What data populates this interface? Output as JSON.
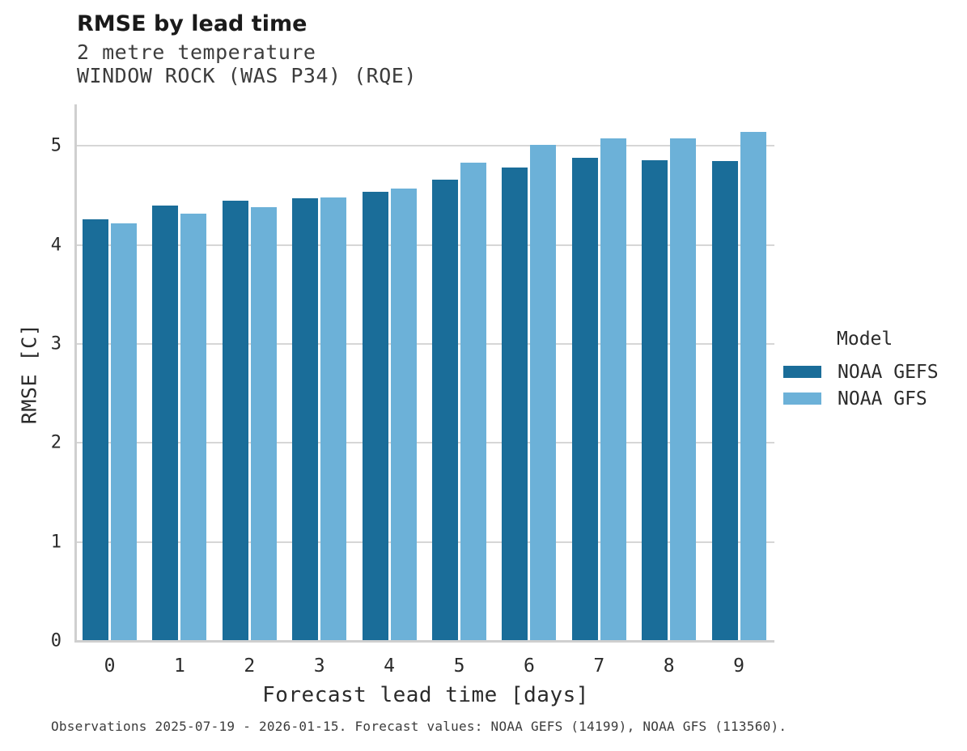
{
  "header": {
    "title": "RMSE by lead time",
    "subtitle": "2 metre temperature",
    "station": "WINDOW ROCK (WAS P34) (RQE)"
  },
  "chart_data": {
    "type": "bar",
    "title": "RMSE by lead time",
    "subtitle": "2 metre temperature",
    "station": "WINDOW ROCK (WAS P34) (RQE)",
    "xlabel": "Forecast lead time [days]",
    "ylabel": "RMSE [C]",
    "categories": [
      "0",
      "1",
      "2",
      "3",
      "4",
      "5",
      "6",
      "7",
      "8",
      "9"
    ],
    "series": [
      {
        "name": "NOAA GEFS",
        "color": "#1a6d99",
        "values": [
          4.26,
          4.4,
          4.45,
          4.47,
          4.54,
          4.66,
          4.78,
          4.88,
          4.86,
          4.85
        ]
      },
      {
        "name": "NOAA GFS",
        "color": "#6cb1d8",
        "values": [
          4.22,
          4.32,
          4.38,
          4.48,
          4.57,
          4.83,
          5.01,
          5.08,
          5.08,
          5.14
        ]
      }
    ],
    "ylim": [
      0,
      5.42
    ],
    "yticks": [
      0,
      1,
      2,
      3,
      4,
      5
    ],
    "grid": true,
    "legend_position": "right"
  },
  "legend": {
    "title": "Model"
  },
  "footer": {
    "caption": "Observations 2025-07-19 - 2026-01-15. Forecast values: NOAA GEFS (14199), NOAA GFS (113560)."
  },
  "colors": {
    "grid": "#d6d6d6",
    "axis": "#cfcfcf",
    "title_text": "#1a1a1a",
    "subtitle_text": "#3c3c3c",
    "tick_text": "#2b2b2b"
  }
}
